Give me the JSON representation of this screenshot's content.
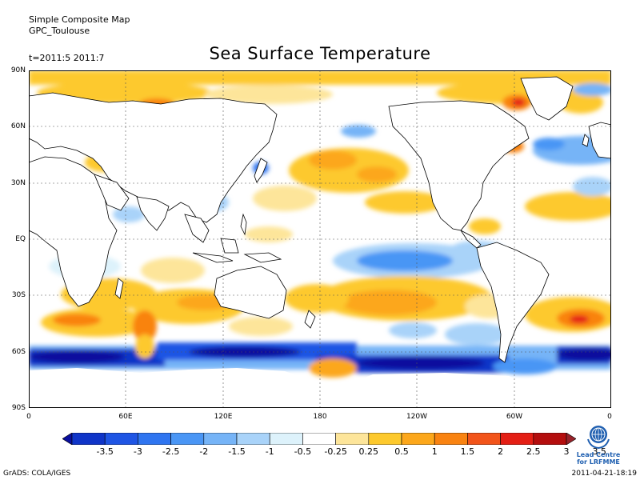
{
  "header": {
    "line1": "Simple Composite Map",
    "line2": "GPC_Toulouse",
    "period": "t=2011:5 2011:7"
  },
  "title": "Sea Surface Temperature",
  "lat_ticks": [
    "90N",
    "60N",
    "30N",
    "EQ",
    "30S",
    "60S",
    "90S"
  ],
  "lon_ticks": [
    "0",
    "60E",
    "120E",
    "180",
    "120W",
    "60W",
    "0"
  ],
  "colorbar": {
    "labels": [
      "-3.5",
      "-3",
      "-2.5",
      "-2",
      "-1.5",
      "-1",
      "-0.5",
      "-0.25",
      "0.25",
      "0.5",
      "1",
      "1.5",
      "2",
      "2.5",
      "3",
      "3.5"
    ],
    "colors": [
      "#0a0f9e",
      "#1035c8",
      "#1f55e4",
      "#2f75f0",
      "#4a96f5",
      "#76b4f7",
      "#a9d3f9",
      "#ddf2fb",
      "#ffffff",
      "#fde59a",
      "#fdc92d",
      "#fca71b",
      "#f98311",
      "#f2541a",
      "#e41f15",
      "#b40e0e",
      "#98222a"
    ]
  },
  "footer": {
    "software": "GrADS: COLA/IGES",
    "timestamp": "2011-04-21-18:19"
  },
  "logo": {
    "line1": "Lead Centre",
    "line2": "for LRFMME"
  }
}
